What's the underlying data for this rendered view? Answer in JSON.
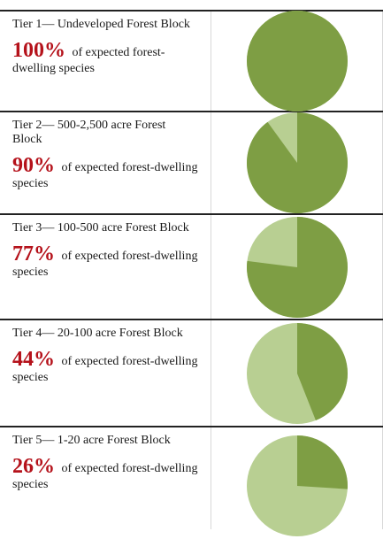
{
  "colors": {
    "share": "#7e9e44",
    "remainder": "#b8cf92",
    "percent_text": "#b5121b"
  },
  "chart_data": {
    "type": "pie",
    "slice_color": "#7e9e44",
    "remainder_color": "#b8cf92",
    "unit": "% of expected forest-dwelling species",
    "tiers": [
      {
        "title": "Tier 1— Undeveloped Forest Block",
        "percent": "100%",
        "value": 100,
        "rest": "of expected forest-dwelling species"
      },
      {
        "title": "Tier 2— 500-2,500 acre Forest Block",
        "percent": "90%",
        "value": 90,
        "rest": "of expected forest-dwelling species"
      },
      {
        "title": "Tier 3— 100-500 acre Forest Block",
        "percent": "77%",
        "value": 77,
        "rest": "of expected forest-dwelling species"
      },
      {
        "title": "Tier 4— 20-100 acre Forest Block",
        "percent": "44%",
        "value": 44,
        "rest": "of expected forest-dwelling species"
      },
      {
        "title": "Tier 5— 1-20 acre Forest Block",
        "percent": "26%",
        "value": 26,
        "rest": "of expected forest-dwelling species"
      }
    ]
  }
}
